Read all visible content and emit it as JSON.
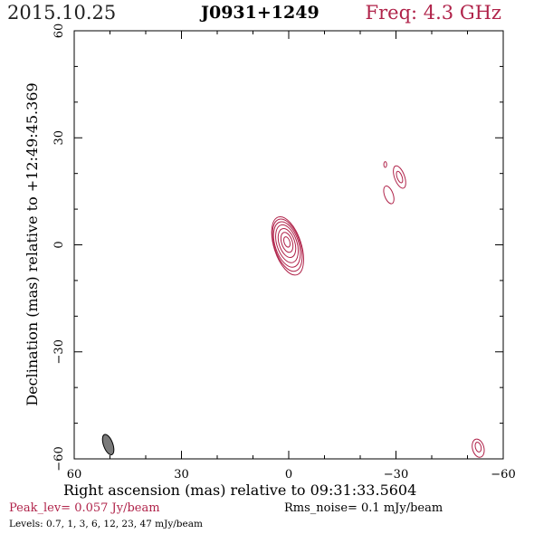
{
  "header": {
    "date": "2015.10.25",
    "source": "J0931+1249",
    "frequency": "Freq: 4.3 GHz"
  },
  "footer": {
    "peak": "Peak_lev=  0.057 Jy/beam",
    "rms": "Rms_noise=   0.1 mJy/beam",
    "levels": "Levels: 0.7,    1,    3,    6,   12,   23,   47  mJy/beam"
  },
  "colors": {
    "contour": "#b0234a",
    "beam": "#7a7a7a",
    "axes": "#000000"
  },
  "chart_data": {
    "type": "contour",
    "xlabel": "Right ascension (mas) relative to 09:31:33.5604",
    "ylabel": "Declination (mas) relative to +12:49:45.369",
    "xlim": [
      60,
      -60
    ],
    "ylim": [
      -60,
      60
    ],
    "xticks": [
      60,
      30,
      0,
      -30,
      -60
    ],
    "yticks": [
      60,
      30,
      0,
      -30,
      -60
    ],
    "xtick_labels": [
      "60",
      "30",
      "0",
      "−30",
      "−60"
    ],
    "ytick_labels": [
      "60",
      "30",
      "0",
      "−30",
      "−60"
    ],
    "contour_levels_mJy": [
      0.7,
      1,
      3,
      6,
      12,
      23,
      47
    ],
    "peak_Jy_per_beam": 0.057,
    "rms_mJy_per_beam": 0.1,
    "components": [
      {
        "name": "core",
        "x": 0.5,
        "y": 0.5,
        "contours": [
          {
            "rx": 3.8,
            "ry": 8.5,
            "angle": -18,
            "dx": -0.2,
            "dy": -0.8
          },
          {
            "rx": 3.6,
            "ry": 7.6,
            "angle": -18,
            "dx": -0.1,
            "dy": -0.6
          },
          {
            "rx": 3.3,
            "ry": 6.6,
            "angle": -18,
            "dx": 0.0,
            "dy": -0.4
          },
          {
            "rx": 2.8,
            "ry": 5.5,
            "angle": -18,
            "dx": 0.0,
            "dy": -0.2
          },
          {
            "rx": 2.2,
            "ry": 4.2,
            "angle": -18,
            "dx": 0.0,
            "dy": 0.0
          },
          {
            "rx": 1.5,
            "ry": 2.9,
            "angle": -18,
            "dx": 0.0,
            "dy": 0.2
          },
          {
            "rx": 0.8,
            "ry": 1.5,
            "angle": -18,
            "dx": 0.0,
            "dy": 0.3
          }
        ]
      },
      {
        "name": "jet-knot",
        "x": -31,
        "y": 19,
        "contours": [
          {
            "rx": 1.4,
            "ry": 3.3,
            "angle": -20,
            "dx": 0,
            "dy": 0
          },
          {
            "rx": 0.7,
            "ry": 1.7,
            "angle": -20,
            "dx": 0,
            "dy": 0
          }
        ]
      },
      {
        "name": "jet-blob",
        "x": -28,
        "y": 14,
        "contours": [
          {
            "rx": 1.2,
            "ry": 2.6,
            "angle": -20,
            "dx": 0,
            "dy": 0
          }
        ]
      },
      {
        "name": "jet-speck",
        "x": -27,
        "y": 22.5,
        "contours": [
          {
            "rx": 0.4,
            "ry": 0.8,
            "angle": 0,
            "dx": 0,
            "dy": 0
          }
        ]
      },
      {
        "name": "edge-component",
        "x": -53,
        "y": -57,
        "contours": [
          {
            "rx": 1.6,
            "ry": 2.6,
            "angle": -15,
            "dx": 0,
            "dy": 0
          },
          {
            "rx": 0.8,
            "ry": 1.4,
            "angle": -15,
            "dx": 0,
            "dy": 0.3
          }
        ]
      }
    ],
    "beam": {
      "x": 50.5,
      "y": -56,
      "major": 6.0,
      "minor": 2.6,
      "angle": -20
    }
  }
}
